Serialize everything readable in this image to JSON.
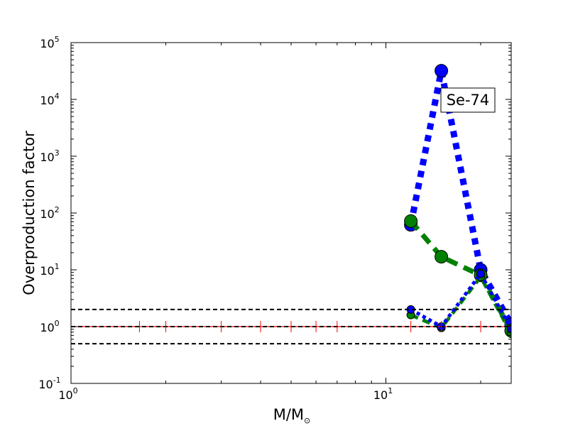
{
  "chart_data": {
    "type": "scatter",
    "title": "",
    "xlabel": "M/M",
    "xlabel_sub": "⊙",
    "ylabel": "Overproduction factor",
    "xscale": "log",
    "yscale": "log",
    "xlim": [
      1,
      25
    ],
    "ylim": [
      0.1,
      100000
    ],
    "grid": false,
    "legend": "none",
    "x_ticks": [
      {
        "value": 1,
        "base": "10",
        "exp": "0"
      },
      {
        "value": 10,
        "base": "10",
        "exp": "1"
      }
    ],
    "y_ticks": [
      {
        "value": 0.1,
        "base": "10",
        "exp": "-1"
      },
      {
        "value": 1,
        "base": "10",
        "exp": "0"
      },
      {
        "value": 10,
        "base": "10",
        "exp": "1"
      },
      {
        "value": 100,
        "base": "10",
        "exp": "2"
      },
      {
        "value": 1000,
        "base": "10",
        "exp": "3"
      },
      {
        "value": 10000,
        "base": "10",
        "exp": "4"
      },
      {
        "value": 100000,
        "base": "10",
        "exp": "5"
      }
    ],
    "annotation": "Se-74",
    "reference_lines": [
      {
        "y": 2,
        "color": "#000000",
        "style": "dashed"
      },
      {
        "y": 1,
        "color": "#000000",
        "style": "dashed"
      },
      {
        "y": 0.5,
        "color": "#000000",
        "style": "dashed"
      },
      {
        "y": 1,
        "color": "#ff0000",
        "style": "solid"
      }
    ],
    "red_markers_x": [
      1.65,
      2,
      3,
      4,
      5,
      6,
      7,
      12,
      15,
      20,
      25
    ],
    "series": [
      {
        "color": "#0000ff",
        "style": "dotted",
        "width": 9,
        "marker_r": 9,
        "points": [
          [
            12,
            62
          ],
          [
            15,
            32000
          ],
          [
            20,
            10
          ],
          [
            25,
            1.1
          ]
        ]
      },
      {
        "color": "#008000",
        "style": "dashed",
        "width": 7,
        "marker_r": 9,
        "points": [
          [
            12,
            72
          ],
          [
            15,
            17
          ],
          [
            20,
            8
          ],
          [
            25,
            0.85
          ]
        ]
      },
      {
        "color": "#008000",
        "style": "dashed",
        "width": 5,
        "marker_r": 5.5,
        "points": [
          [
            12,
            1.6
          ],
          [
            15,
            0.95
          ],
          [
            20,
            7.5
          ],
          [
            25,
            0.75
          ]
        ]
      },
      {
        "color": "#0000ff",
        "style": "dotted",
        "width": 5,
        "marker_r": 5.5,
        "points": [
          [
            12,
            2.0
          ],
          [
            15,
            1.0
          ],
          [
            20,
            8.5
          ],
          [
            25,
            0.9
          ]
        ]
      }
    ]
  }
}
